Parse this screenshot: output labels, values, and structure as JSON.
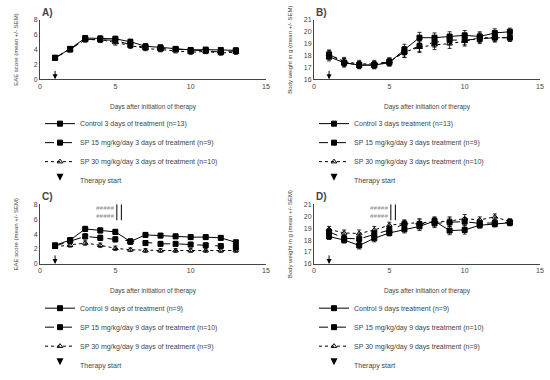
{
  "chart_data": [
    {
      "type": "line",
      "title": "A)",
      "x_label": "Days after initiation of therapy",
      "y_label": "EAE score (mean +/- SEM)",
      "xlim": [
        0,
        15
      ],
      "ylim": [
        0,
        8
      ],
      "xticks": [
        0,
        5,
        10,
        15
      ],
      "yticks": [
        0,
        2,
        4,
        6,
        8
      ],
      "grid": false,
      "color": "black",
      "x": [
        1,
        2,
        3,
        4,
        5,
        6,
        7,
        8,
        9,
        10,
        11,
        12,
        13
      ],
      "series": [
        {
          "name": "Control 3 days of treatment (n=13)",
          "line_style": "solid",
          "marker": "square",
          "values": [
            2.9,
            4.1,
            5.55,
            5.5,
            5.45,
            5.05,
            4.45,
            4.3,
            4.1,
            3.95,
            4.0,
            3.95,
            3.9
          ],
          "error": [
            0.2,
            0.3,
            0.3,
            0.35,
            0.35,
            0.35,
            0.3,
            0.3,
            0.3,
            0.3,
            0.3,
            0.3,
            0.3
          ]
        },
        {
          "name": "SP 15 mg/kg/day 3 days of treatment (n=9)",
          "line_style": "dash",
          "marker": "square",
          "values": [
            2.9,
            4.0,
            5.4,
            5.35,
            5.25,
            4.65,
            4.3,
            4.15,
            4.05,
            3.85,
            3.85,
            3.65,
            3.85
          ],
          "error": [
            0.2,
            0.3,
            0.3,
            0.35,
            0.35,
            0.35,
            0.3,
            0.3,
            0.3,
            0.3,
            0.3,
            0.3,
            0.3
          ]
        },
        {
          "name": "SP 30 mg/kg/day 3 days of treatment (n=10)",
          "line_style": "dot",
          "marker": "triangle-up-open",
          "values": [
            2.9,
            4.1,
            5.3,
            5.35,
            4.95,
            4.5,
            4.15,
            4.0,
            3.85,
            3.65,
            3.75,
            3.55,
            3.65
          ],
          "error": [
            0.2,
            0.3,
            0.3,
            0.35,
            0.35,
            0.35,
            0.3,
            0.3,
            0.3,
            0.3,
            0.3,
            0.3,
            0.3
          ]
        }
      ],
      "therapy_start": {
        "x": 1,
        "name": "Therapy start",
        "marker": "arrow-down"
      }
    },
    {
      "type": "line",
      "title": "B)",
      "x_label": "Days after initiation of therapy",
      "y_label": "Body weight in g (mean +/- SEM)",
      "xlim": [
        0,
        15
      ],
      "ylim": [
        16,
        21
      ],
      "xticks": [
        0,
        5,
        10,
        15
      ],
      "yticks": [
        16,
        17,
        18,
        19,
        20,
        21
      ],
      "grid": false,
      "color": "black",
      "x": [
        1,
        2,
        3,
        4,
        5,
        6,
        7,
        8,
        9,
        10,
        11,
        12,
        13
      ],
      "series": [
        {
          "name": "Control 3 days treatment (n=13)",
          "line_style": "solid",
          "marker": "square",
          "values": [
            17.9,
            17.4,
            17.2,
            17.2,
            17.4,
            18.5,
            19.5,
            19.5,
            19.6,
            19.7,
            19.6,
            19.9,
            20.0
          ],
          "error": [
            0.35,
            0.35,
            0.3,
            0.3,
            0.3,
            0.45,
            0.45,
            0.4,
            0.4,
            0.4,
            0.4,
            0.35,
            0.3
          ]
        },
        {
          "name": "SP 15 mg/kg/day 3 days treatment (n=9)",
          "line_style": "dash",
          "marker": "square",
          "values": [
            18.1,
            17.4,
            17.2,
            17.2,
            17.5,
            18.3,
            18.8,
            19.1,
            19.3,
            19.3,
            19.4,
            19.5,
            19.5
          ],
          "error": [
            0.35,
            0.35,
            0.3,
            0.3,
            0.3,
            0.45,
            0.45,
            0.4,
            0.4,
            0.4,
            0.4,
            0.35,
            0.3
          ]
        },
        {
          "name": "SP 30 mg/kg/day 3 days treatment (n=10)",
          "line_style": "dot",
          "marker": "triangle-up-open",
          "values": [
            18.1,
            17.5,
            17.3,
            17.3,
            17.5,
            18.3,
            18.7,
            18.9,
            19.0,
            19.2,
            19.5,
            19.5,
            19.5
          ],
          "error": [
            0.35,
            0.35,
            0.3,
            0.3,
            0.3,
            0.45,
            0.45,
            0.4,
            0.4,
            0.4,
            0.4,
            0.35,
            0.3
          ]
        }
      ],
      "therapy_start": {
        "x": 1,
        "name": "Therapy start",
        "marker": "arrow-down"
      }
    },
    {
      "type": "line",
      "title": "C)",
      "x_label": "Days after initiation of therapy",
      "y_label": "EAE score (mean +/- SEM)",
      "xlim": [
        0,
        15
      ],
      "ylim": [
        0,
        8
      ],
      "xticks": [
        0,
        5,
        10,
        15
      ],
      "yticks": [
        0,
        2,
        4,
        6,
        8
      ],
      "grid": false,
      "color": "black",
      "x": [
        1,
        2,
        3,
        4,
        5,
        6,
        7,
        8,
        9,
        10,
        11,
        12,
        13
      ],
      "series": [
        {
          "name": "Control 9 days of treatment (n=9)",
          "line_style": "solid",
          "marker": "square",
          "values": [
            2.5,
            3.2,
            4.7,
            4.5,
            4.3,
            3.0,
            3.9,
            3.8,
            3.7,
            3.6,
            3.6,
            3.5,
            2.9
          ],
          "error": [
            0.2,
            0.3,
            0.35,
            0.35,
            0.35,
            0.35,
            0.3,
            0.3,
            0.3,
            0.3,
            0.3,
            0.3,
            0.3
          ]
        },
        {
          "name": "SP 15 mg/kg/day 9 days of treatment (n=10)",
          "line_style": "dash",
          "marker": "square",
          "values": [
            2.4,
            3.1,
            3.7,
            3.5,
            3.3,
            3.0,
            2.8,
            2.7,
            2.7,
            2.6,
            2.5,
            2.4,
            2.2
          ],
          "error": [
            0.2,
            0.3,
            0.35,
            0.35,
            0.35,
            0.3,
            0.3,
            0.3,
            0.3,
            0.3,
            0.3,
            0.3,
            0.3
          ]
        },
        {
          "name": "SP 30 mg/kg/day 9 days of treatment (n=9)",
          "line_style": "dot",
          "marker": "triangle-up-open",
          "values": [
            2.3,
            2.5,
            2.8,
            2.5,
            2.1,
            1.9,
            1.8,
            1.8,
            1.8,
            1.8,
            1.8,
            1.8,
            1.8
          ],
          "error": [
            0.2,
            0.25,
            0.3,
            0.3,
            0.3,
            0.25,
            0.25,
            0.25,
            0.25,
            0.25,
            0.25,
            0.25,
            0.25
          ]
        }
      ],
      "therapy_start": {
        "x": 1,
        "name": "Therapy start",
        "marker": "arrow-down"
      },
      "annotations": [
        {
          "text": "#####",
          "color": "#888888"
        },
        {
          "text": "#####",
          "color": "#888888"
        }
      ]
    },
    {
      "type": "line",
      "title": "D)",
      "x_label": "Days after initiation of therapy",
      "y_label": "Body weight in g (mean +/- SEM)",
      "xlim": [
        0,
        15
      ],
      "ylim": [
        16,
        21
      ],
      "xticks": [
        0,
        5,
        10,
        15
      ],
      "yticks": [
        16,
        17,
        18,
        19,
        20,
        21
      ],
      "grid": false,
      "color": "black",
      "x": [
        1,
        2,
        3,
        4,
        5,
        6,
        7,
        8,
        9,
        10,
        11,
        12,
        13
      ],
      "series": [
        {
          "name": "Control 9 days treatment (n=9)",
          "line_style": "solid",
          "marker": "square",
          "values": [
            18.3,
            18.0,
            17.55,
            18.15,
            18.6,
            18.9,
            19.15,
            19.6,
            18.8,
            18.85,
            19.25,
            19.35,
            19.45
          ],
          "error": [
            0.25,
            0.25,
            0.3,
            0.3,
            0.25,
            0.3,
            0.35,
            0.35,
            0.35,
            0.35,
            0.25,
            0.25,
            0.25
          ]
        },
        {
          "name": "SP 15 mg/kg/day 9 days treatment (n=10)",
          "line_style": "dash",
          "marker": "square",
          "values": [
            18.7,
            18.15,
            18.1,
            18.5,
            18.85,
            19.35,
            19.35,
            19.4,
            19.5,
            19.55,
            19.4,
            19.45,
            19.5
          ],
          "error": [
            0.25,
            0.25,
            0.3,
            0.3,
            0.25,
            0.3,
            0.35,
            0.35,
            0.35,
            0.35,
            0.25,
            0.25,
            0.25
          ]
        },
        {
          "name": "SP 30 mg/kg/day 9 days treatment (n=9)",
          "line_style": "dot",
          "marker": "triangle-up-open",
          "values": [
            18.9,
            18.6,
            18.55,
            18.85,
            19.25,
            19.4,
            19.45,
            19.55,
            19.6,
            19.8,
            19.7,
            19.95,
            19.55
          ],
          "error": [
            0.25,
            0.25,
            0.3,
            0.3,
            0.25,
            0.3,
            0.35,
            0.35,
            0.35,
            0.35,
            0.25,
            0.25,
            0.25
          ]
        }
      ],
      "therapy_start": {
        "x": 1,
        "name": "Therapy start",
        "marker": "arrow-down"
      },
      "annotations": [
        {
          "text": "#####",
          "color": "#888888"
        },
        {
          "text": "#####",
          "color": "#888888"
        }
      ]
    }
  ]
}
